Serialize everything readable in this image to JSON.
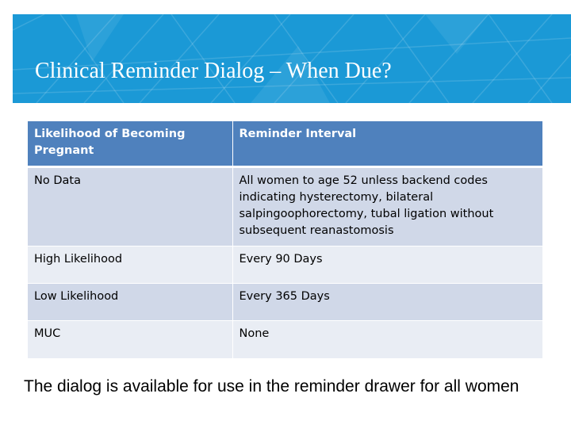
{
  "banner": {
    "title": "Clinical Reminder Dialog – When Due?"
  },
  "table": {
    "headers": [
      "Likelihood of Becoming Pregnant",
      "Reminder Interval"
    ],
    "rows": [
      [
        "No Data",
        "All women to age 52 unless backend codes indicating hysterectomy, bilateral salpingoophorectomy, tubal ligation without subsequent reanastomosis"
      ],
      [
        "High Likelihood",
        "Every 90 Days"
      ],
      [
        "Low Likelihood",
        "Every 365 Days"
      ],
      [
        "MUC",
        "None"
      ]
    ]
  },
  "footer": {
    "text": "The dialog is available for use in the reminder drawer for all women"
  },
  "colors": {
    "banner": "#1b99d6",
    "table_header": "#4f81bd",
    "row_dark": "#d0d8e8",
    "row_light": "#e9edf4"
  }
}
